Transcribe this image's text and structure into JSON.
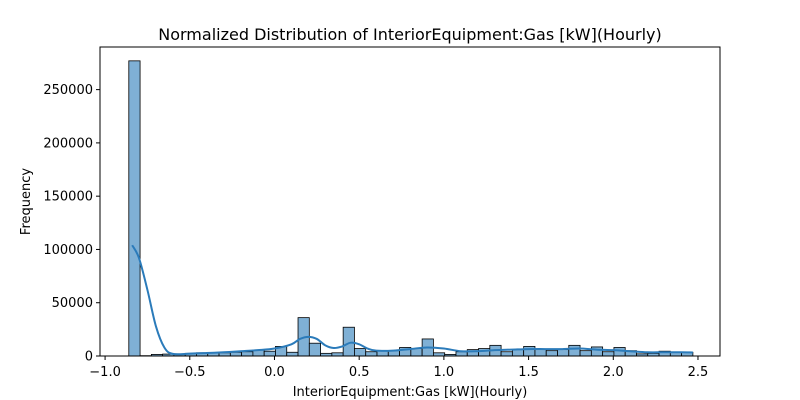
{
  "chart_data": {
    "type": "bar",
    "title": "Normalized Distribution of InteriorEquipment:Gas [kW](Hourly)",
    "xlabel": "InteriorEquipment:Gas [kW](Hourly)",
    "ylabel": "Frequency",
    "xlim": [
      -1.03,
      2.63
    ],
    "ylim": [
      0,
      290000
    ],
    "xticks": [
      -1.0,
      -0.5,
      0.0,
      0.5,
      1.0,
      1.5,
      2.0,
      2.5
    ],
    "xtick_labels": [
      "−1.0",
      "−0.5",
      "0.0",
      "0.5",
      "1.0",
      "1.5",
      "2.0",
      "2.5"
    ],
    "yticks": [
      0,
      50000,
      100000,
      150000,
      200000,
      250000
    ],
    "ytick_labels": [
      "0",
      "50000",
      "100000",
      "150000",
      "200000",
      "250000"
    ],
    "grid": false,
    "bar_color": "#7fb0d5",
    "edge_color": "#000000",
    "kde_color": "#2b7bba",
    "bins": {
      "start": -0.86,
      "width": 0.0666,
      "counts": [
        277000,
        300,
        1500,
        1800,
        2000,
        2500,
        3000,
        3200,
        3000,
        3500,
        4000,
        5500,
        4500,
        9000,
        3500,
        36000,
        12000,
        2500,
        3000,
        27000,
        7000,
        4000,
        5000,
        5000,
        8000,
        7000,
        16000,
        3000,
        1500,
        4000,
        6000,
        7000,
        10000,
        4000,
        6000,
        9000,
        6000,
        5000,
        6000,
        10000,
        5000,
        8500,
        4000,
        8000,
        5000,
        2000,
        2500,
        4500,
        3500,
        3500
      ]
    },
    "kde": {
      "x": [
        -0.84,
        -0.8,
        -0.75,
        -0.7,
        -0.65,
        -0.6,
        -0.5,
        -0.4,
        -0.3,
        -0.2,
        -0.1,
        0.0,
        0.1,
        0.15,
        0.2,
        0.25,
        0.3,
        0.35,
        0.4,
        0.45,
        0.5,
        0.55,
        0.6,
        0.7,
        0.8,
        0.9,
        1.0,
        1.1,
        1.2,
        1.3,
        1.4,
        1.5,
        1.6,
        1.7,
        1.8,
        1.9,
        2.0,
        2.1,
        2.2,
        2.3,
        2.4,
        2.47
      ],
      "y": [
        104000,
        92000,
        62000,
        28000,
        8000,
        2000,
        2200,
        2800,
        3500,
        4500,
        5500,
        7000,
        11000,
        16000,
        18000,
        16000,
        10000,
        7500,
        9000,
        12500,
        11000,
        7000,
        5000,
        5000,
        6500,
        8000,
        7000,
        4500,
        4500,
        5500,
        6000,
        6500,
        6500,
        6500,
        7000,
        6000,
        5500,
        4500,
        3500,
        3500,
        3500,
        3300
      ]
    }
  }
}
